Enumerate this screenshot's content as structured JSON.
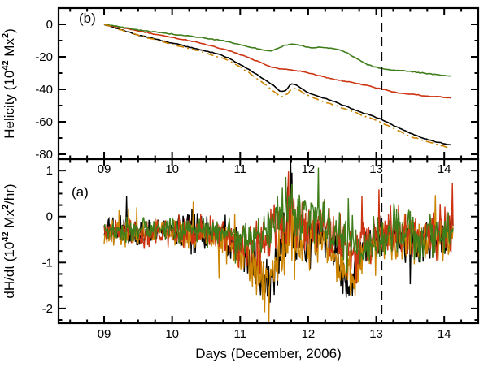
{
  "figure": {
    "background": "#ffffff",
    "axis_color": "#000000",
    "xlabel": "Days (December, 2006)",
    "x_tick_labels": [
      "09",
      "10",
      "11",
      "12",
      "13",
      "14"
    ],
    "x_tick_values": [
      9,
      10,
      11,
      12,
      13,
      14
    ],
    "x_minor_interval": 0.25,
    "xlim": [
      8.33,
      14.5
    ],
    "vline_x": 13.08
  },
  "chart_data": [
    {
      "type": "line",
      "panel": "b",
      "panel_label": "(b)",
      "ylabel_text": "Helicity (10^42 Mx^2)",
      "ylabel_parts": [
        "Helicity (10",
        "42",
        " Mx",
        "2",
        ")"
      ],
      "ylim": [
        -83,
        10
      ],
      "yticks": [
        {
          "value": 0,
          "label": "0"
        },
        {
          "value": -20,
          "label": "-20"
        },
        {
          "value": -40,
          "label": "-40"
        },
        {
          "value": -60,
          "label": "-60"
        },
        {
          "value": -80,
          "label": "-80"
        }
      ],
      "y_minor_interval": 10,
      "wiggle": 0.35,
      "vline_x": 13.08,
      "series": [
        {
          "name": "black",
          "color": "#000000",
          "line_style": "solid",
          "points": [
            [
              9.0,
              0
            ],
            [
              9.15,
              -2
            ],
            [
              9.3,
              -4
            ],
            [
              9.5,
              -6.5
            ],
            [
              9.7,
              -8.5
            ],
            [
              9.9,
              -10.5
            ],
            [
              10.1,
              -12.5
            ],
            [
              10.3,
              -14.5
            ],
            [
              10.5,
              -16.5
            ],
            [
              10.7,
              -18.5
            ],
            [
              10.82,
              -20.5
            ],
            [
              10.95,
              -23.5
            ],
            [
              11.1,
              -27
            ],
            [
              11.25,
              -31
            ],
            [
              11.4,
              -35
            ],
            [
              11.5,
              -38
            ],
            [
              11.6,
              -41.5
            ],
            [
              11.68,
              -40.5
            ],
            [
              11.73,
              -37.5
            ],
            [
              11.78,
              -36.5
            ],
            [
              11.85,
              -38
            ],
            [
              11.95,
              -41
            ],
            [
              12.05,
              -43
            ],
            [
              12.2,
              -45
            ],
            [
              12.35,
              -47
            ],
            [
              12.5,
              -49.5
            ],
            [
              12.65,
              -52
            ],
            [
              12.8,
              -54.5
            ],
            [
              12.95,
              -56.5
            ],
            [
              13.1,
              -59
            ],
            [
              13.25,
              -62
            ],
            [
              13.4,
              -65
            ],
            [
              13.5,
              -67
            ],
            [
              13.65,
              -69.5
            ],
            [
              13.8,
              -71.5
            ],
            [
              13.95,
              -73
            ],
            [
              14.12,
              -74.5
            ]
          ]
        },
        {
          "name": "red",
          "color": "#cc3311",
          "line_style": "solid",
          "points": [
            [
              9.0,
              0
            ],
            [
              9.2,
              -1.5
            ],
            [
              9.5,
              -4
            ],
            [
              9.8,
              -6.5
            ],
            [
              10.0,
              -8
            ],
            [
              10.3,
              -10.5
            ],
            [
              10.6,
              -13.5
            ],
            [
              10.9,
              -17
            ],
            [
              11.1,
              -20
            ],
            [
              11.3,
              -23.5
            ],
            [
              11.45,
              -26
            ],
            [
              11.6,
              -27.5
            ],
            [
              11.75,
              -28
            ],
            [
              11.9,
              -29
            ],
            [
              12.0,
              -30
            ],
            [
              12.2,
              -32
            ],
            [
              12.4,
              -34
            ],
            [
              12.6,
              -35.5
            ],
            [
              12.8,
              -37
            ],
            [
              13.0,
              -39
            ],
            [
              13.15,
              -40.5
            ],
            [
              13.3,
              -42
            ],
            [
              13.5,
              -43
            ],
            [
              13.7,
              -44
            ],
            [
              13.9,
              -44.5
            ],
            [
              14.12,
              -45.5
            ]
          ]
        },
        {
          "name": "green",
          "color": "#3f7d1a",
          "line_style": "solid",
          "points": [
            [
              9.0,
              0
            ],
            [
              9.3,
              -2
            ],
            [
              9.6,
              -4
            ],
            [
              9.9,
              -5.5
            ],
            [
              10.2,
              -7
            ],
            [
              10.5,
              -8.5
            ],
            [
              10.8,
              -10.5
            ],
            [
              11.0,
              -12.5
            ],
            [
              11.2,
              -14.5
            ],
            [
              11.35,
              -16
            ],
            [
              11.45,
              -16.5
            ],
            [
              11.55,
              -15
            ],
            [
              11.65,
              -13
            ],
            [
              11.75,
              -12
            ],
            [
              11.85,
              -12.5
            ],
            [
              11.95,
              -13.5
            ],
            [
              12.05,
              -14.5
            ],
            [
              12.15,
              -14
            ],
            [
              12.3,
              -14.5
            ],
            [
              12.45,
              -15.5
            ],
            [
              12.55,
              -17
            ],
            [
              12.65,
              -19.5
            ],
            [
              12.75,
              -22
            ],
            [
              12.85,
              -24.5
            ],
            [
              12.95,
              -26
            ],
            [
              13.05,
              -27
            ],
            [
              13.2,
              -28
            ],
            [
              13.4,
              -28.5
            ],
            [
              13.6,
              -29.5
            ],
            [
              13.8,
              -30.5
            ],
            [
              14.0,
              -31.5
            ],
            [
              14.12,
              -32
            ]
          ]
        },
        {
          "name": "orange",
          "color": "#cc8400",
          "line_style": "dashdot",
          "points": [
            [
              9.0,
              0
            ],
            [
              9.2,
              -3
            ],
            [
              9.4,
              -5.5
            ],
            [
              9.6,
              -8
            ],
            [
              9.8,
              -10
            ],
            [
              10.0,
              -12.5
            ],
            [
              10.2,
              -14.5
            ],
            [
              10.4,
              -16.5
            ],
            [
              10.6,
              -19
            ],
            [
              10.8,
              -21.5
            ],
            [
              10.95,
              -25
            ],
            [
              11.1,
              -29
            ],
            [
              11.25,
              -33.5
            ],
            [
              11.4,
              -38
            ],
            [
              11.5,
              -41.5
            ],
            [
              11.6,
              -44.5
            ],
            [
              11.68,
              -43.5
            ],
            [
              11.75,
              -40
            ],
            [
              11.82,
              -39.5
            ],
            [
              11.9,
              -41.5
            ],
            [
              12.0,
              -44
            ],
            [
              12.15,
              -46.5
            ],
            [
              12.3,
              -48.5
            ],
            [
              12.5,
              -51.5
            ],
            [
              12.7,
              -54.5
            ],
            [
              12.9,
              -57.5
            ],
            [
              13.05,
              -60
            ],
            [
              13.2,
              -63
            ],
            [
              13.35,
              -66
            ],
            [
              13.5,
              -69
            ],
            [
              13.7,
              -71.5
            ],
            [
              13.9,
              -74
            ],
            [
              14.12,
              -76.5
            ]
          ]
        }
      ]
    },
    {
      "type": "line",
      "panel": "a",
      "panel_label": "(a)",
      "ylabel_text": "dH/dt (10^42 Mx^2/hr)",
      "ylabel_parts": [
        "dH/dt (10",
        "42",
        " Mx",
        "2",
        "/hr)"
      ],
      "xlabel": "Days (December, 2006)",
      "ylim": [
        -2.32,
        1.25
      ],
      "yticks": [
        {
          "value": 1,
          "label": "1"
        },
        {
          "value": 0,
          "label": "0"
        },
        {
          "value": -1,
          "label": "-1"
        },
        {
          "value": -2,
          "label": "-2"
        }
      ],
      "y_minor_interval": 0.25,
      "vline_x": 13.08,
      "noise": {
        "seed": 1234,
        "dt": 0.01,
        "x_start": 9.0,
        "x_end": 14.13,
        "spike_prob": 0.05,
        "spike_mult": 2.0
      },
      "series": [
        {
          "name": "black",
          "color": "#000000",
          "keypoints": [
            [
              9.0,
              -0.35,
              0.22
            ],
            [
              9.3,
              -0.3,
              0.3
            ],
            [
              9.5,
              -0.4,
              0.28
            ],
            [
              9.8,
              -0.35,
              0.25
            ],
            [
              10.1,
              -0.3,
              0.3
            ],
            [
              10.3,
              -0.3,
              0.55
            ],
            [
              10.5,
              -0.35,
              0.3
            ],
            [
              10.8,
              -0.45,
              0.3
            ],
            [
              11.0,
              -0.7,
              0.4
            ],
            [
              11.2,
              -1.0,
              0.5
            ],
            [
              11.45,
              -1.3,
              0.5
            ],
            [
              11.6,
              -0.8,
              0.6
            ],
            [
              11.7,
              -0.1,
              0.65
            ],
            [
              11.8,
              -0.4,
              0.6
            ],
            [
              11.95,
              -0.7,
              0.5
            ],
            [
              12.1,
              -0.35,
              0.45
            ],
            [
              12.3,
              -0.5,
              0.45
            ],
            [
              12.5,
              -1.2,
              0.5
            ],
            [
              12.65,
              -1.4,
              0.45
            ],
            [
              12.8,
              -0.8,
              0.45
            ],
            [
              13.0,
              -0.5,
              0.4
            ],
            [
              13.2,
              -0.6,
              0.4
            ],
            [
              13.45,
              -0.55,
              0.45
            ],
            [
              13.7,
              -0.5,
              0.4
            ],
            [
              13.95,
              -0.45,
              0.4
            ],
            [
              14.13,
              -0.35,
              0.5
            ]
          ]
        },
        {
          "name": "orange",
          "color": "#cc8400",
          "keypoints": [
            [
              9.0,
              -0.4,
              0.22
            ],
            [
              9.3,
              -0.35,
              0.28
            ],
            [
              9.6,
              -0.4,
              0.26
            ],
            [
              9.9,
              -0.35,
              0.26
            ],
            [
              10.2,
              -0.35,
              0.3
            ],
            [
              10.5,
              -0.4,
              0.3
            ],
            [
              10.8,
              -0.5,
              0.32
            ],
            [
              11.0,
              -0.8,
              0.45
            ],
            [
              11.25,
              -1.2,
              0.5
            ],
            [
              11.45,
              -1.4,
              0.5
            ],
            [
              11.6,
              -0.9,
              0.6
            ],
            [
              11.72,
              -0.2,
              0.6
            ],
            [
              11.85,
              -0.5,
              0.55
            ],
            [
              12.0,
              -0.6,
              0.5
            ],
            [
              12.2,
              -0.4,
              0.45
            ],
            [
              12.45,
              -1.1,
              0.5
            ],
            [
              12.65,
              -1.3,
              0.5
            ],
            [
              12.85,
              -0.7,
              0.45
            ],
            [
              13.05,
              -0.5,
              0.4
            ],
            [
              13.3,
              -0.6,
              0.42
            ],
            [
              13.6,
              -0.55,
              0.4
            ],
            [
              13.9,
              -0.5,
              0.4
            ],
            [
              14.13,
              -0.4,
              0.5
            ]
          ]
        },
        {
          "name": "red",
          "color": "#cc3311",
          "keypoints": [
            [
              9.0,
              -0.3,
              0.2
            ],
            [
              9.4,
              -0.3,
              0.28
            ],
            [
              9.8,
              -0.32,
              0.26
            ],
            [
              10.2,
              -0.3,
              0.3
            ],
            [
              10.6,
              -0.35,
              0.3
            ],
            [
              10.9,
              -0.5,
              0.38
            ],
            [
              11.15,
              -0.7,
              0.5
            ],
            [
              11.4,
              -0.6,
              0.55
            ],
            [
              11.6,
              -0.2,
              0.6
            ],
            [
              11.75,
              0.1,
              0.6
            ],
            [
              11.9,
              -0.2,
              0.55
            ],
            [
              12.1,
              -0.25,
              0.5
            ],
            [
              12.3,
              -0.2,
              0.5
            ],
            [
              12.5,
              -0.6,
              0.5
            ],
            [
              12.7,
              -0.9,
              0.5
            ],
            [
              12.9,
              -0.5,
              0.45
            ],
            [
              13.1,
              -0.4,
              0.45
            ],
            [
              13.35,
              -0.25,
              0.5
            ],
            [
              13.6,
              -0.45,
              0.4
            ],
            [
              13.9,
              -0.4,
              0.42
            ],
            [
              14.13,
              -0.3,
              0.5
            ]
          ]
        },
        {
          "name": "green",
          "color": "#3f7d1a",
          "keypoints": [
            [
              9.0,
              -0.3,
              0.18
            ],
            [
              9.4,
              -0.28,
              0.22
            ],
            [
              9.8,
              -0.3,
              0.22
            ],
            [
              10.2,
              -0.28,
              0.24
            ],
            [
              10.6,
              -0.3,
              0.24
            ],
            [
              10.9,
              -0.35,
              0.3
            ],
            [
              11.2,
              -0.45,
              0.4
            ],
            [
              11.45,
              -0.3,
              0.5
            ],
            [
              11.6,
              0.2,
              0.6
            ],
            [
              11.75,
              0.3,
              0.55
            ],
            [
              11.9,
              0.1,
              0.5
            ],
            [
              12.1,
              0.05,
              0.5
            ],
            [
              12.3,
              -0.05,
              0.5
            ],
            [
              12.5,
              -0.4,
              0.5
            ],
            [
              12.7,
              -0.8,
              0.5
            ],
            [
              12.9,
              -0.7,
              0.45
            ],
            [
              13.1,
              -0.45,
              0.4
            ],
            [
              13.35,
              -0.15,
              0.5
            ],
            [
              13.6,
              -0.5,
              0.4
            ],
            [
              13.9,
              -0.45,
              0.4
            ],
            [
              14.13,
              -0.35,
              0.45
            ]
          ]
        }
      ]
    }
  ]
}
